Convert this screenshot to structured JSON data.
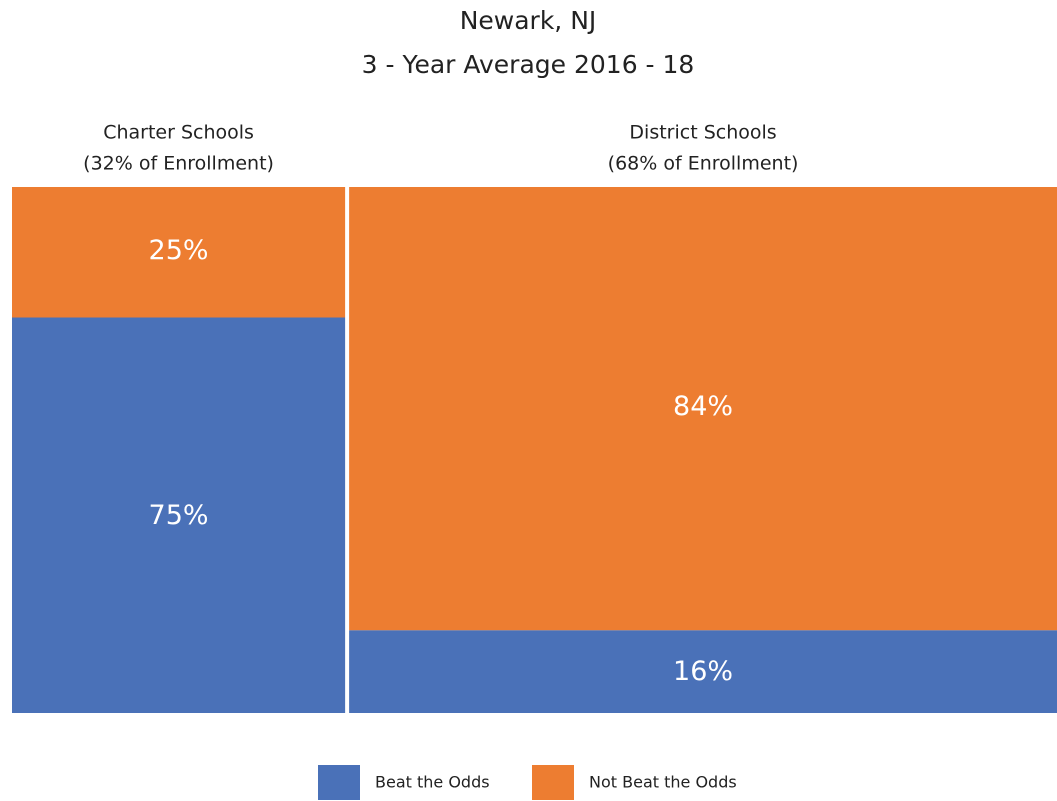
{
  "chart_data": {
    "type": "mosaic",
    "title": "Newark, NJ",
    "subtitle": "3 - Year Average 2016 - 18",
    "categories": [
      "Charter Schools",
      "District Schools"
    ],
    "widths": [
      32,
      68
    ],
    "width_labels": [
      "(32% of Enrollment)",
      "(68% of Enrollment)"
    ],
    "series": [
      {
        "name": "Beat the Odds",
        "color": "#4a71b8",
        "values": [
          75,
          16
        ],
        "value_labels": [
          "75%",
          "16%"
        ]
      },
      {
        "name": "Not Beat the Odds",
        "color": "#ed7d31",
        "values": [
          25,
          84
        ],
        "value_labels": [
          "25%",
          "84%"
        ]
      }
    ],
    "legend": "bottom"
  }
}
